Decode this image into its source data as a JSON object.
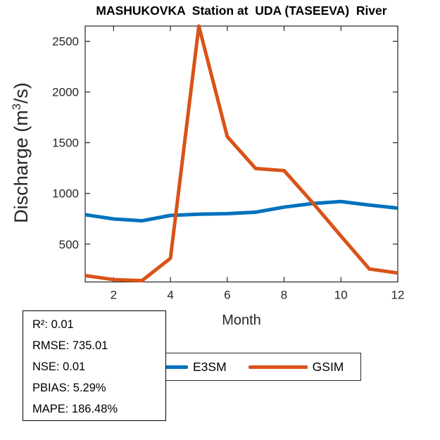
{
  "chart_data": {
    "type": "line",
    "title": "MASHUKOVKA  Station at  UDA (TASEEVA)  River",
    "xlabel": "Month",
    "ylabel": "Discharge (m³/s)",
    "ylabel_parts": {
      "pre": "Discharge (m",
      "sup": "3",
      "post": "/s)"
    },
    "x": [
      1,
      2,
      3,
      4,
      5,
      6,
      7,
      8,
      9,
      10,
      11,
      12
    ],
    "series": [
      {
        "name": "E3SM",
        "color": "#0072BD",
        "values": [
          790,
          748,
          730,
          783,
          795,
          800,
          815,
          865,
          900,
          920,
          885,
          855
        ]
      },
      {
        "name": "GSIM",
        "color": "#D95319",
        "values": [
          190,
          150,
          140,
          360,
          2650,
          1560,
          1245,
          1225,
          910,
          580,
          255,
          215
        ]
      }
    ],
    "xticks": [
      2,
      4,
      6,
      8,
      10,
      12
    ],
    "yticks": [
      500,
      1000,
      1500,
      2000,
      2500
    ],
    "xlim": [
      1,
      12
    ],
    "ylim": [
      127,
      2650
    ],
    "grid": false,
    "legend_position": "below-axes"
  },
  "stats_box": {
    "lines": [
      "R²: 0.01",
      "RMSE: 735.01",
      "NSE: 0.01",
      "PBIAS: 5.29%",
      "MAPE: 186.48%"
    ]
  },
  "legend": {
    "items": [
      {
        "label": "E3SM",
        "color": "#0072BD"
      },
      {
        "label": "GSIM",
        "color": "#D95319"
      }
    ]
  },
  "colors": {
    "axis": "#262626",
    "blue": "#0072BD",
    "orange": "#D95319"
  }
}
